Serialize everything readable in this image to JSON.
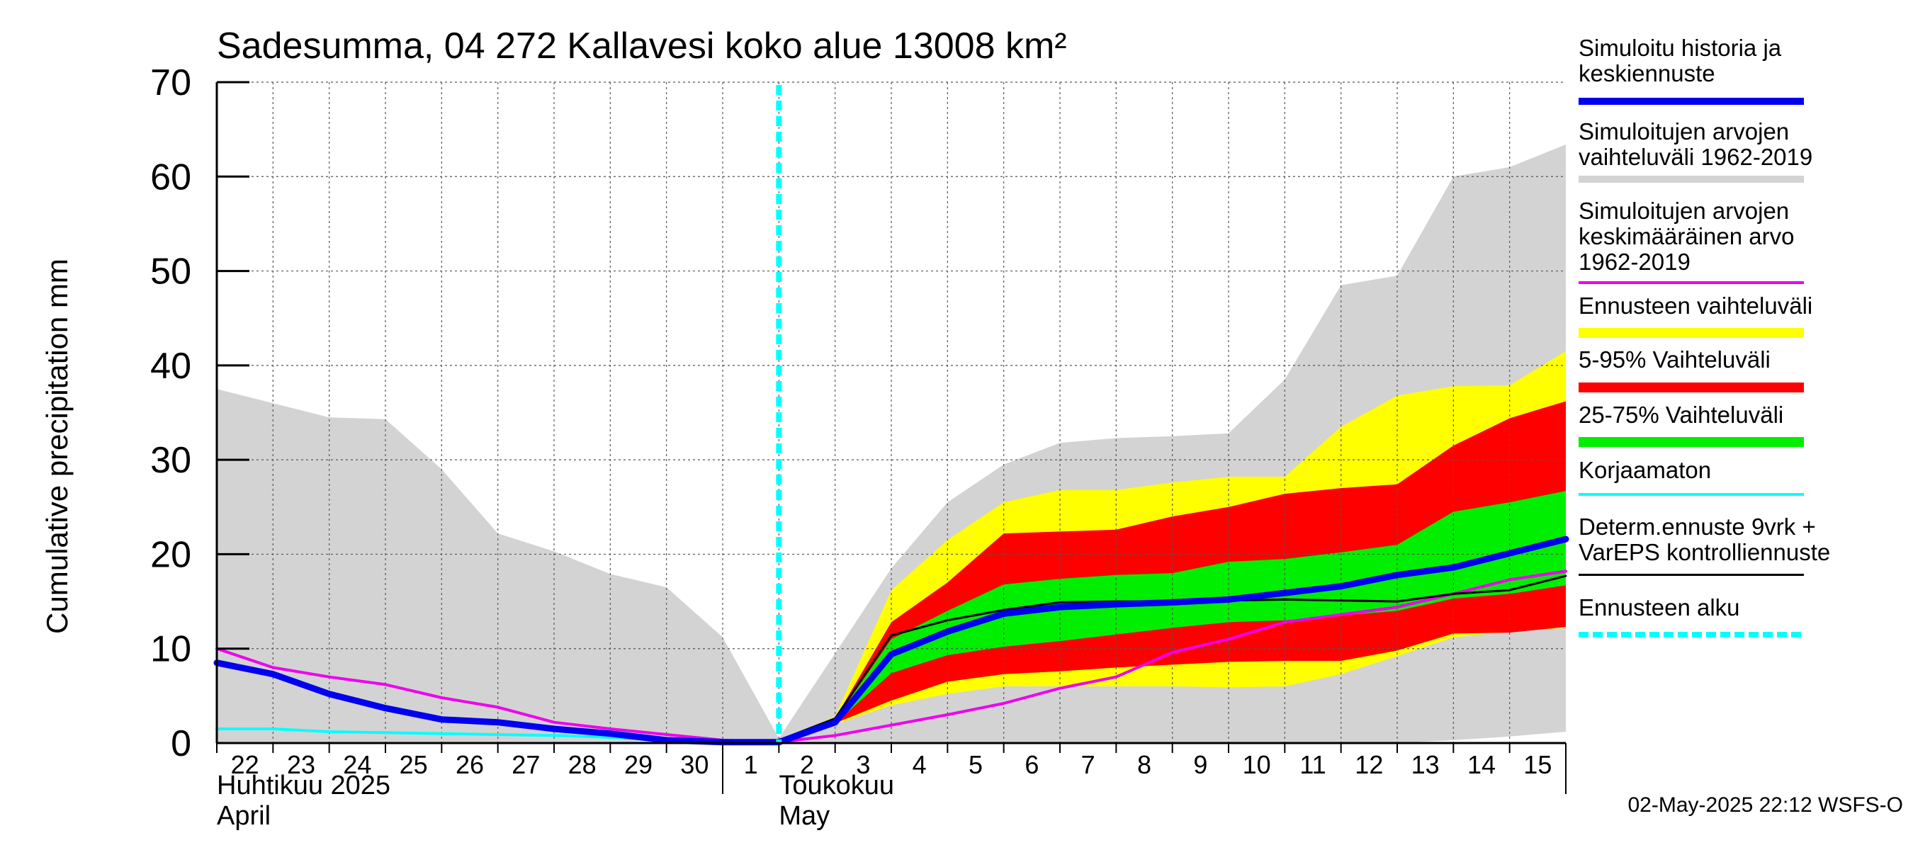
{
  "chart_data": {
    "type": "area",
    "title": "Sadesumma, 04 272 Kallavesi koko alue 13008 km²",
    "ylabel": "Cumulative precipitation   mm",
    "ylim": [
      0,
      70
    ],
    "yticks": [
      0,
      10,
      20,
      30,
      40,
      50,
      60,
      70
    ],
    "x_day_range": [
      0,
      24
    ],
    "x_tick_labels": [
      "22",
      "23",
      "24",
      "25",
      "26",
      "27",
      "28",
      "29",
      "30",
      "1",
      "2",
      "3",
      "4",
      "5",
      "6",
      "7",
      "8",
      "9",
      "10",
      "11",
      "12",
      "13",
      "14",
      "15"
    ],
    "month_labels": [
      {
        "fi": "Huhtikuu  2025",
        "en": "April"
      },
      {
        "fi": "Toukokuu",
        "en": "May"
      }
    ],
    "forecast_start_day": 10,
    "x": [
      0,
      1,
      2,
      3,
      4,
      5,
      6,
      7,
      8,
      9,
      10,
      11,
      12,
      13,
      14,
      15,
      16,
      17,
      18,
      19,
      20,
      21,
      22,
      23,
      24
    ],
    "series": [
      {
        "name": "Simuloitujen arvojen vaihteluväli 1962-2019",
        "kind": "band",
        "color": "#d3d3d3",
        "upper": [
          37.5,
          36,
          34.5,
          34.3,
          29,
          22.2,
          20.3,
          17.9,
          16.5,
          11.2,
          0.5,
          9.5,
          18.5,
          25.5,
          29.5,
          31.8,
          32.3,
          32.5,
          32.8,
          38.5,
          48.5,
          49.5,
          60,
          61,
          63.4
        ],
        "lower": [
          0,
          0,
          0,
          0,
          0,
          0,
          0,
          0,
          0,
          0,
          0,
          0,
          0,
          0,
          0,
          0,
          0,
          0,
          0,
          0,
          0,
          0,
          0.3,
          0.7,
          1.2
        ]
      },
      {
        "name": "Ennusteen vaihteluväli",
        "kind": "band",
        "color": "#ffff00",
        "upper": [
          null,
          null,
          null,
          null,
          null,
          null,
          null,
          null,
          null,
          null,
          0.3,
          2.8,
          16.2,
          21.5,
          25.5,
          26.8,
          26.8,
          27.6,
          28.2,
          28.2,
          33.5,
          36.8,
          37.8,
          37.9,
          41.5
        ],
        "lower": [
          null,
          null,
          null,
          null,
          null,
          null,
          null,
          null,
          null,
          null,
          0.3,
          2.0,
          4.0,
          5.2,
          6.0,
          6.0,
          6.0,
          6.0,
          5.9,
          6.0,
          7.3,
          9.2,
          11.2,
          11.8,
          12.2
        ]
      },
      {
        "name": "5-95% Vaihteluväli",
        "kind": "band",
        "color": "#ff0000",
        "upper": [
          null,
          null,
          null,
          null,
          null,
          null,
          null,
          null,
          null,
          null,
          0.3,
          2.6,
          12.8,
          17.0,
          22.2,
          22.4,
          22.6,
          24.0,
          25.0,
          26.4,
          27.0,
          27.4,
          31.5,
          34.4,
          36.2
        ],
        "lower": [
          null,
          null,
          null,
          null,
          null,
          null,
          null,
          null,
          null,
          null,
          0.3,
          2.1,
          4.5,
          6.5,
          7.3,
          7.6,
          8.0,
          8.3,
          8.6,
          8.7,
          8.7,
          9.8,
          11.6,
          11.7,
          12.3
        ]
      },
      {
        "name": "25-75% Vaihteluväli",
        "kind": "band",
        "color": "#00ee00",
        "upper": [
          null,
          null,
          null,
          null,
          null,
          null,
          null,
          null,
          null,
          null,
          0.3,
          2.4,
          11.0,
          14.0,
          16.8,
          17.4,
          17.8,
          18.0,
          19.2,
          19.5,
          20.2,
          21.0,
          24.5,
          25.5,
          26.7
        ],
        "lower": [
          null,
          null,
          null,
          null,
          null,
          null,
          null,
          null,
          null,
          null,
          0.3,
          2.1,
          7.4,
          9.3,
          10.2,
          10.8,
          11.5,
          12.2,
          12.8,
          13.0,
          13.5,
          14.0,
          15.3,
          15.8,
          16.7
        ]
      },
      {
        "name": "Simuloitujen arvojen keskimääräinen arvo 1962-2019",
        "kind": "line",
        "color": "#ee00ee",
        "width": 4,
        "values": [
          10.0,
          8.0,
          7.0,
          6.2,
          4.8,
          3.8,
          2.2,
          1.5,
          0.9,
          0.3,
          0.1,
          0.8,
          1.9,
          3.0,
          4.2,
          5.8,
          7.0,
          9.6,
          11.0,
          12.8,
          13.6,
          14.4,
          15.8,
          17.3,
          18.2
        ]
      },
      {
        "name": "Korjaamaton",
        "kind": "line",
        "color": "#00ffff",
        "width": 4,
        "values": [
          1.5,
          1.5,
          1.2,
          1.1,
          1.0,
          0.9,
          0.8,
          0.6,
          0.3,
          0.2,
          0.1,
          null,
          null,
          null,
          null,
          null,
          null,
          null,
          null,
          null,
          null,
          null,
          null,
          null,
          null
        ]
      },
      {
        "name": "Determ.ennuste 9vrk + VarEPS kontrolliennuste",
        "kind": "line",
        "color": "#000000",
        "width": 3,
        "values": [
          null,
          null,
          null,
          null,
          null,
          null,
          null,
          null,
          null,
          null,
          0.3,
          2.6,
          11.4,
          13.0,
          14.1,
          14.9,
          15.0,
          15.0,
          15.1,
          15.2,
          15.1,
          15.0,
          15.8,
          16.2,
          17.7
        ]
      },
      {
        "name": "Simuloitu historia ja keskiennuste",
        "kind": "line",
        "color": "#0000ee",
        "width": 9,
        "values": [
          8.5,
          7.3,
          5.2,
          3.7,
          2.5,
          2.2,
          1.5,
          1.0,
          0.3,
          0.1,
          0.1,
          2.2,
          9.4,
          11.8,
          13.7,
          14.4,
          14.7,
          14.9,
          15.2,
          15.9,
          16.6,
          17.8,
          18.6,
          20.1,
          21.6
        ]
      }
    ]
  },
  "legend": {
    "items": [
      {
        "label": "Simuloitu historia ja\nkeskiennuste",
        "color": "#0000ee"
      },
      {
        "label": "Simuloitujen arvojen\nvaihteluväli 1962-2019",
        "color": "#d3d3d3"
      },
      {
        "label": "Simuloitujen arvojen\nkeskimääräinen arvo\n   1962-2019",
        "color": "#ee00ee"
      },
      {
        "label": "Ennusteen vaihteluväli",
        "color": "#ffff00"
      },
      {
        "label": "5-95% Vaihteluväli",
        "color": "#ff0000"
      },
      {
        "label": "25-75% Vaihteluväli",
        "color": "#00ee00"
      },
      {
        "label": "Korjaamaton",
        "color": "#00ffff"
      },
      {
        "label": "Determ.ennuste 9vrk +\nVarEPS kontrolliennuste",
        "color": "#000000"
      },
      {
        "label": "Ennusteen alku",
        "color": "#00ffff"
      }
    ]
  },
  "footer": "02-May-2025 22:12 WSFS-O"
}
